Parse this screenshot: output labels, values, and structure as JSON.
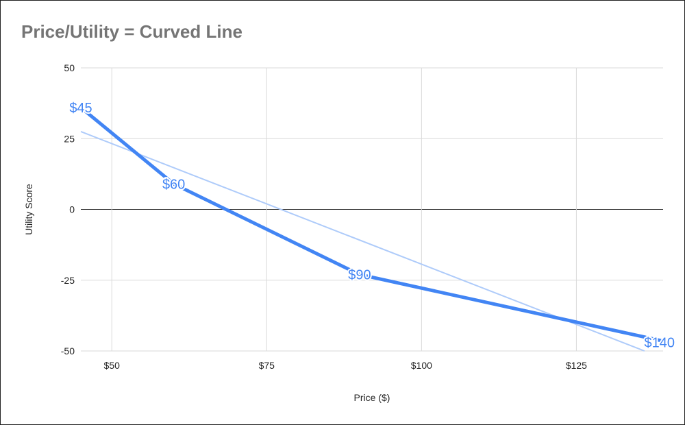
{
  "chart_data": {
    "type": "line",
    "title": "Price/Utility = Curved Line",
    "xlabel": "Price ($)",
    "ylabel": "Utility Score",
    "xlim": [
      45,
      139
    ],
    "ylim": [
      -50,
      50
    ],
    "x_ticks": [
      50,
      75,
      100,
      125
    ],
    "x_tick_labels": [
      "$50",
      "$75",
      "$100",
      "$125"
    ],
    "y_ticks": [
      -50,
      -25,
      0,
      25,
      50
    ],
    "y_tick_labels": [
      "-50",
      "-25",
      "0",
      "25",
      "50"
    ],
    "grid": true,
    "series": [
      {
        "color": "#4285f4",
        "x": [
          45,
          60,
          90,
          140
        ],
        "y": [
          36,
          9,
          -23,
          -47
        ],
        "labels": [
          "$45",
          "$60",
          "$90",
          "$140"
        ]
      }
    ],
    "trendline": {
      "color": "#aecbfa",
      "x": [
        45,
        136
      ],
      "y": [
        27.5,
        -50
      ]
    }
  }
}
